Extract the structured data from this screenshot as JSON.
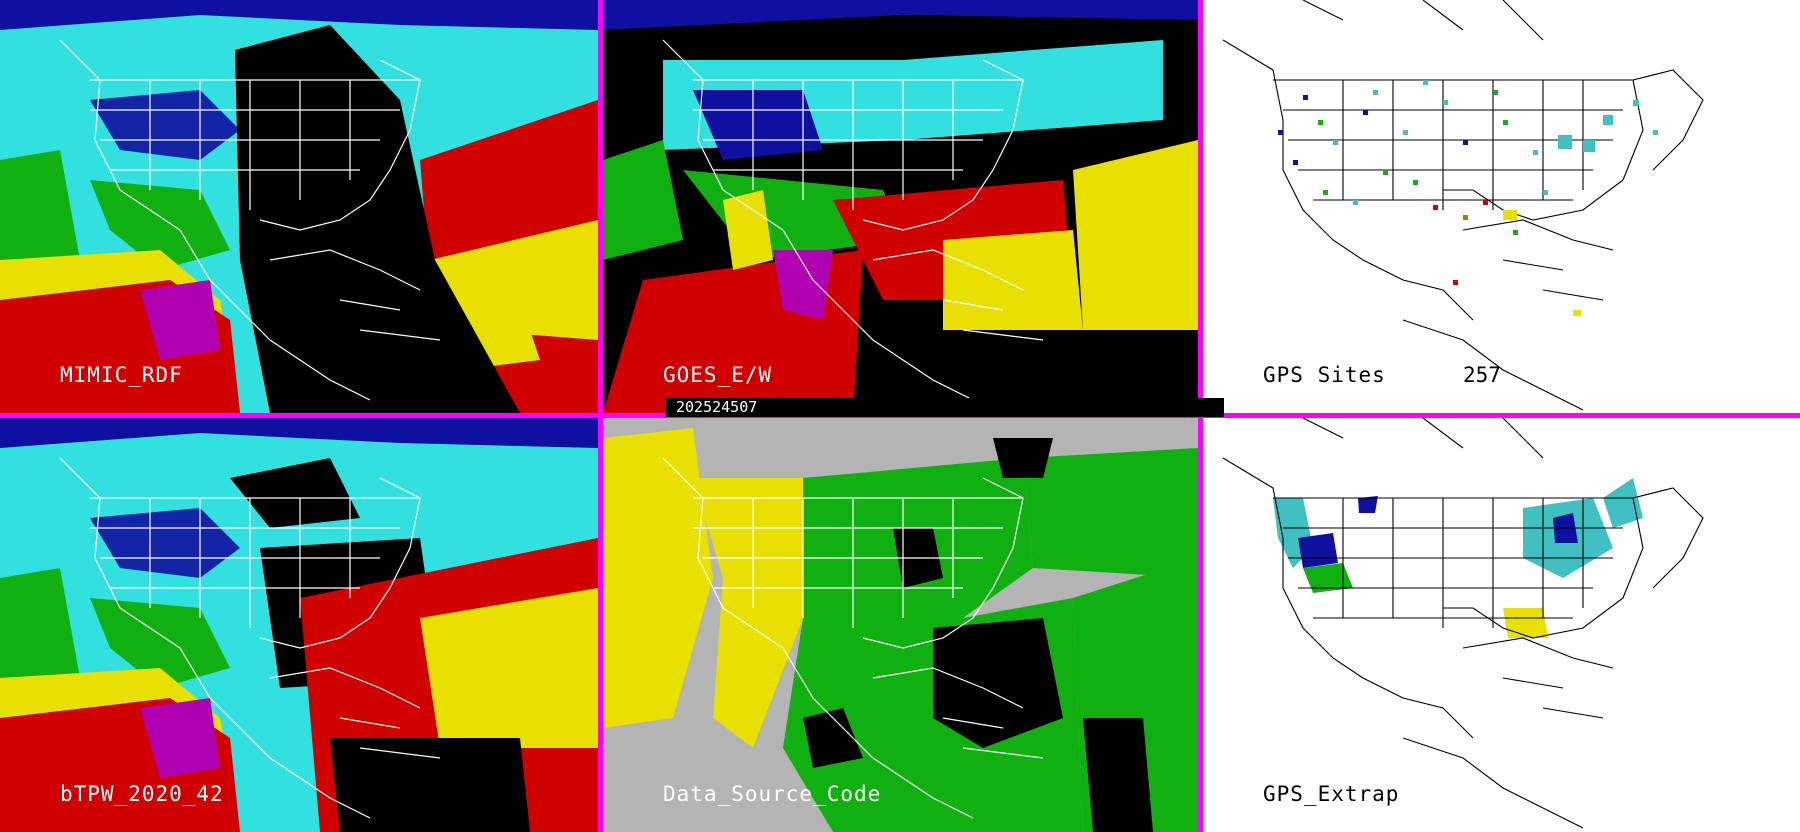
{
  "panels": {
    "mimic_rdf": {
      "label": "MIMIC_RDF"
    },
    "goes_ew": {
      "label": "GOES_E/W"
    },
    "gps_sites": {
      "label": "GPS Sites",
      "count": "257"
    },
    "btpw": {
      "label": "bTPW_2020_42"
    },
    "data_source": {
      "label": "Data_Source_Code"
    },
    "gps_extrap": {
      "label": "GPS_Extrap"
    }
  },
  "timestamp": "202524507",
  "colors": {
    "divider": "#ff00ff",
    "cyan": "#33e0e0",
    "blue": "#1010a0",
    "green": "#10b010",
    "yellow": "#e8e000",
    "red": "#d00000",
    "magenta": "#b000b0",
    "gray": "#b4b4b4",
    "teal": "#40c0c0"
  },
  "icons": {
    "coastline": "coastline-outline",
    "state-borders": "state-borders-outline"
  }
}
